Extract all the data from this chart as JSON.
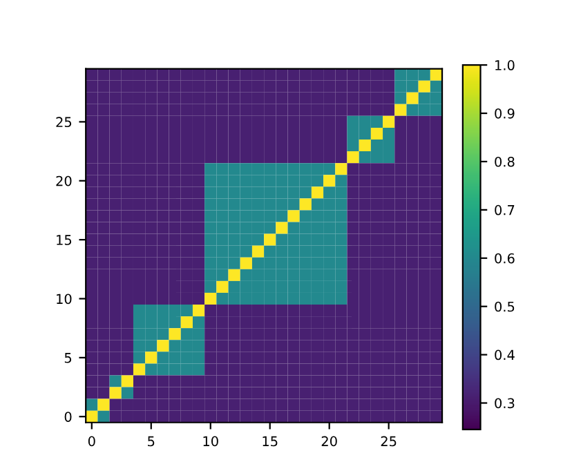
{
  "chart_data": {
    "type": "heatmap",
    "xlim": [
      -0.5,
      29.5
    ],
    "ylim": [
      -0.5,
      29.5
    ],
    "xticks": [
      0,
      5,
      10,
      15,
      20,
      25
    ],
    "yticks": [
      0,
      5,
      10,
      15,
      20,
      25
    ],
    "clim": [
      0.245,
      1.0
    ],
    "cticks": [
      0.3,
      0.4,
      0.5,
      0.6,
      0.7,
      0.8,
      0.9,
      {
        "value": 1.0,
        "label": "1.0"
      }
    ],
    "cells": [
      [
        0.31,
        0.31,
        0.31,
        0.31,
        0.31,
        0.31,
        0.31,
        0.31,
        0.31,
        0.31,
        0.31,
        0.31,
        0.31,
        0.31,
        0.31,
        0.31,
        0.31,
        0.31,
        0.31,
        0.31,
        0.31,
        0.31,
        0.31,
        0.31,
        0.31,
        0.31,
        0.6,
        0.6,
        0.6,
        1
      ],
      [
        0.31,
        0.31,
        0.31,
        0.31,
        0.31,
        0.31,
        0.31,
        0.31,
        0.31,
        0.31,
        0.31,
        0.31,
        0.31,
        0.31,
        0.31,
        0.31,
        0.31,
        0.31,
        0.31,
        0.31,
        0.31,
        0.31,
        0.31,
        0.31,
        0.31,
        0.31,
        0.6,
        0.6,
        1,
        0.6
      ],
      [
        0.31,
        0.31,
        0.31,
        0.31,
        0.31,
        0.31,
        0.31,
        0.31,
        0.31,
        0.31,
        0.31,
        0.31,
        0.31,
        0.31,
        0.31,
        0.31,
        0.31,
        0.31,
        0.31,
        0.31,
        0.31,
        0.31,
        0.31,
        0.31,
        0.31,
        0.31,
        0.6,
        1,
        0.6,
        0.6
      ],
      [
        0.31,
        0.31,
        0.31,
        0.31,
        0.31,
        0.31,
        0.31,
        0.31,
        0.31,
        0.31,
        0.31,
        0.31,
        0.31,
        0.31,
        0.31,
        0.31,
        0.31,
        0.31,
        0.31,
        0.31,
        0.31,
        0.31,
        0.31,
        0.31,
        0.31,
        0.31,
        1,
        0.6,
        0.6,
        0.6
      ],
      [
        0.31,
        0.31,
        0.31,
        0.31,
        0.31,
        0.31,
        0.31,
        0.31,
        0.31,
        0.31,
        0.31,
        0.31,
        0.31,
        0.31,
        0.31,
        0.31,
        0.31,
        0.31,
        0.31,
        0.31,
        0.31,
        0.31,
        0.6,
        0.6,
        0.6,
        1,
        0.31,
        0.31,
        0.31,
        0.31
      ],
      [
        0.31,
        0.31,
        0.31,
        0.31,
        0.31,
        0.31,
        0.31,
        0.31,
        0.31,
        0.31,
        0.31,
        0.31,
        0.31,
        0.31,
        0.31,
        0.31,
        0.31,
        0.31,
        0.31,
        0.31,
        0.31,
        0.31,
        0.6,
        0.6,
        1,
        0.6,
        0.31,
        0.31,
        0.31,
        0.31
      ],
      [
        0.31,
        0.31,
        0.31,
        0.31,
        0.31,
        0.31,
        0.31,
        0.31,
        0.31,
        0.31,
        0.31,
        0.31,
        0.31,
        0.31,
        0.31,
        0.31,
        0.31,
        0.31,
        0.31,
        0.31,
        0.31,
        0.31,
        0.6,
        1,
        0.6,
        0.6,
        0.31,
        0.31,
        0.31,
        0.31
      ],
      [
        0.31,
        0.31,
        0.31,
        0.31,
        0.31,
        0.31,
        0.31,
        0.31,
        0.31,
        0.31,
        0.31,
        0.31,
        0.31,
        0.31,
        0.31,
        0.31,
        0.31,
        0.31,
        0.31,
        0.31,
        0.31,
        0.31,
        1,
        0.6,
        0.6,
        0.6,
        0.31,
        0.31,
        0.31,
        0.31
      ],
      [
        0.31,
        0.31,
        0.31,
        0.31,
        0.31,
        0.31,
        0.31,
        0.31,
        0.31,
        0.31,
        0.6,
        0.6,
        0.6,
        0.6,
        0.6,
        0.6,
        0.6,
        0.6,
        0.6,
        0.6,
        0.6,
        1,
        0.31,
        0.31,
        0.31,
        0.31,
        0.31,
        0.31,
        0.31,
        0.31
      ],
      [
        0.31,
        0.31,
        0.31,
        0.31,
        0.31,
        0.31,
        0.31,
        0.31,
        0.31,
        0.31,
        0.6,
        0.6,
        0.6,
        0.6,
        0.6,
        0.6,
        0.6,
        0.6,
        0.6,
        0.6,
        1,
        0.6,
        0.31,
        0.31,
        0.31,
        0.31,
        0.31,
        0.31,
        0.31,
        0.31
      ],
      [
        0.31,
        0.31,
        0.31,
        0.31,
        0.31,
        0.31,
        0.31,
        0.31,
        0.31,
        0.31,
        0.6,
        0.6,
        0.6,
        0.6,
        0.6,
        0.6,
        0.6,
        0.6,
        0.6,
        1,
        0.6,
        0.6,
        0.31,
        0.31,
        0.31,
        0.31,
        0.31,
        0.31,
        0.31,
        0.31
      ],
      [
        0.31,
        0.31,
        0.31,
        0.31,
        0.31,
        0.31,
        0.31,
        0.31,
        0.31,
        0.31,
        0.6,
        0.6,
        0.6,
        0.6,
        0.6,
        0.6,
        0.6,
        0.6,
        1,
        0.6,
        0.6,
        0.6,
        0.31,
        0.31,
        0.31,
        0.31,
        0.31,
        0.31,
        0.31,
        0.31
      ],
      [
        0.31,
        0.31,
        0.31,
        0.31,
        0.31,
        0.31,
        0.31,
        0.31,
        0.31,
        0.31,
        0.6,
        0.6,
        0.6,
        0.6,
        0.6,
        0.6,
        0.6,
        1,
        0.6,
        0.6,
        0.6,
        0.6,
        0.31,
        0.31,
        0.31,
        0.31,
        0.31,
        0.31,
        0.31,
        0.31
      ],
      [
        0.31,
        0.31,
        0.31,
        0.31,
        0.31,
        0.31,
        0.31,
        0.31,
        0.31,
        0.31,
        0.6,
        0.6,
        0.6,
        0.6,
        0.6,
        0.6,
        1,
        0.6,
        0.6,
        0.6,
        0.6,
        0.6,
        0.31,
        0.31,
        0.31,
        0.31,
        0.31,
        0.31,
        0.31,
        0.31
      ],
      [
        0.31,
        0.31,
        0.31,
        0.31,
        0.31,
        0.31,
        0.31,
        0.31,
        0.31,
        0.31,
        0.6,
        0.6,
        0.6,
        0.6,
        0.6,
        1,
        0.6,
        0.6,
        0.6,
        0.6,
        0.6,
        0.6,
        0.31,
        0.31,
        0.31,
        0.31,
        0.31,
        0.31,
        0.31,
        0.31
      ],
      [
        0.31,
        0.31,
        0.31,
        0.31,
        0.31,
        0.31,
        0.31,
        0.31,
        0.31,
        0.31,
        0.6,
        0.6,
        0.6,
        0.6,
        1,
        0.6,
        0.6,
        0.6,
        0.6,
        0.6,
        0.6,
        0.6,
        0.31,
        0.31,
        0.31,
        0.31,
        0.31,
        0.31,
        0.31,
        0.31
      ],
      [
        0.31,
        0.31,
        0.31,
        0.31,
        0.31,
        0.31,
        0.31,
        0.31,
        0.31,
        0.31,
        0.6,
        0.6,
        0.6,
        1,
        0.6,
        0.6,
        0.6,
        0.6,
        0.6,
        0.6,
        0.6,
        0.6,
        0.31,
        0.31,
        0.31,
        0.31,
        0.31,
        0.31,
        0.31,
        0.31
      ],
      [
        0.31,
        0.31,
        0.31,
        0.31,
        0.31,
        0.31,
        0.31,
        0.31,
        0.31,
        0.31,
        0.6,
        0.6,
        1,
        0.6,
        0.6,
        0.6,
        0.6,
        0.6,
        0.6,
        0.6,
        0.6,
        0.6,
        0.31,
        0.31,
        0.31,
        0.31,
        0.31,
        0.31,
        0.31,
        0.31
      ],
      [
        0.31,
        0.31,
        0.31,
        0.31,
        0.31,
        0.31,
        0.31,
        0.31,
        0.31,
        0.31,
        0.6,
        1,
        0.6,
        0.6,
        0.6,
        0.6,
        0.6,
        0.6,
        0.6,
        0.6,
        0.6,
        0.6,
        0.31,
        0.31,
        0.31,
        0.31,
        0.31,
        0.31,
        0.31,
        0.31
      ],
      [
        0.31,
        0.31,
        0.31,
        0.31,
        0.31,
        0.31,
        0.31,
        0.31,
        0.31,
        0.31,
        1,
        0.6,
        0.6,
        0.6,
        0.6,
        0.6,
        0.6,
        0.6,
        0.6,
        0.6,
        0.6,
        0.6,
        0.31,
        0.31,
        0.31,
        0.31,
        0.31,
        0.31,
        0.31,
        0.31
      ],
      [
        0.31,
        0.31,
        0.31,
        0.31,
        0.6,
        0.6,
        0.6,
        0.6,
        0.6,
        1,
        0.31,
        0.31,
        0.31,
        0.31,
        0.31,
        0.31,
        0.31,
        0.31,
        0.31,
        0.31,
        0.31,
        0.31,
        0.31,
        0.31,
        0.31,
        0.31,
        0.31,
        0.31,
        0.31,
        0.31
      ],
      [
        0.31,
        0.31,
        0.31,
        0.31,
        0.6,
        0.6,
        0.6,
        0.6,
        1,
        0.6,
        0.31,
        0.31,
        0.31,
        0.31,
        0.31,
        0.31,
        0.31,
        0.31,
        0.31,
        0.31,
        0.31,
        0.31,
        0.31,
        0.31,
        0.31,
        0.31,
        0.31,
        0.31,
        0.31,
        0.31
      ],
      [
        0.31,
        0.31,
        0.31,
        0.31,
        0.6,
        0.6,
        0.6,
        1,
        0.6,
        0.6,
        0.31,
        0.31,
        0.31,
        0.31,
        0.31,
        0.31,
        0.31,
        0.31,
        0.31,
        0.31,
        0.31,
        0.31,
        0.31,
        0.31,
        0.31,
        0.31,
        0.31,
        0.31,
        0.31,
        0.31
      ],
      [
        0.31,
        0.31,
        0.31,
        0.31,
        0.6,
        0.6,
        1,
        0.6,
        0.6,
        0.6,
        0.31,
        0.31,
        0.31,
        0.31,
        0.31,
        0.31,
        0.31,
        0.31,
        0.31,
        0.31,
        0.31,
        0.31,
        0.31,
        0.31,
        0.31,
        0.31,
        0.31,
        0.31,
        0.31,
        0.31
      ],
      [
        0.31,
        0.31,
        0.31,
        0.31,
        0.6,
        1,
        0.6,
        0.6,
        0.6,
        0.6,
        0.31,
        0.31,
        0.31,
        0.31,
        0.31,
        0.31,
        0.31,
        0.31,
        0.31,
        0.31,
        0.31,
        0.31,
        0.31,
        0.31,
        0.31,
        0.31,
        0.31,
        0.31,
        0.31,
        0.31
      ],
      [
        0.31,
        0.31,
        0.31,
        0.31,
        1,
        0.6,
        0.6,
        0.6,
        0.6,
        0.6,
        0.31,
        0.31,
        0.31,
        0.31,
        0.31,
        0.31,
        0.31,
        0.31,
        0.31,
        0.31,
        0.31,
        0.31,
        0.31,
        0.31,
        0.31,
        0.31,
        0.31,
        0.31,
        0.31,
        0.31
      ],
      [
        0.31,
        0.31,
        0.6,
        1,
        0.31,
        0.31,
        0.31,
        0.31,
        0.31,
        0.31,
        0.31,
        0.31,
        0.31,
        0.31,
        0.31,
        0.31,
        0.31,
        0.31,
        0.31,
        0.31,
        0.31,
        0.31,
        0.31,
        0.31,
        0.31,
        0.31,
        0.31,
        0.31,
        0.31,
        0.31
      ],
      [
        0.31,
        0.31,
        1,
        0.6,
        0.31,
        0.31,
        0.31,
        0.31,
        0.31,
        0.31,
        0.31,
        0.31,
        0.31,
        0.31,
        0.31,
        0.31,
        0.31,
        0.31,
        0.31,
        0.31,
        0.31,
        0.31,
        0.31,
        0.31,
        0.31,
        0.31,
        0.31,
        0.31,
        0.31,
        0.31
      ],
      [
        0.6,
        1,
        0.31,
        0.31,
        0.31,
        0.31,
        0.31,
        0.31,
        0.31,
        0.31,
        0.31,
        0.31,
        0.31,
        0.31,
        0.31,
        0.31,
        0.31,
        0.31,
        0.31,
        0.31,
        0.31,
        0.31,
        0.31,
        0.31,
        0.31,
        0.31,
        0.31,
        0.31,
        0.31,
        0.31
      ],
      [
        1,
        0.6,
        0.31,
        0.31,
        0.31,
        0.31,
        0.31,
        0.31,
        0.31,
        0.31,
        0.31,
        0.31,
        0.31,
        0.31,
        0.31,
        0.31,
        0.31,
        0.31,
        0.31,
        0.31,
        0.31,
        0.31,
        0.31,
        0.31,
        0.31,
        0.31,
        0.31,
        0.31,
        0.31,
        0.31
      ]
    ]
  }
}
